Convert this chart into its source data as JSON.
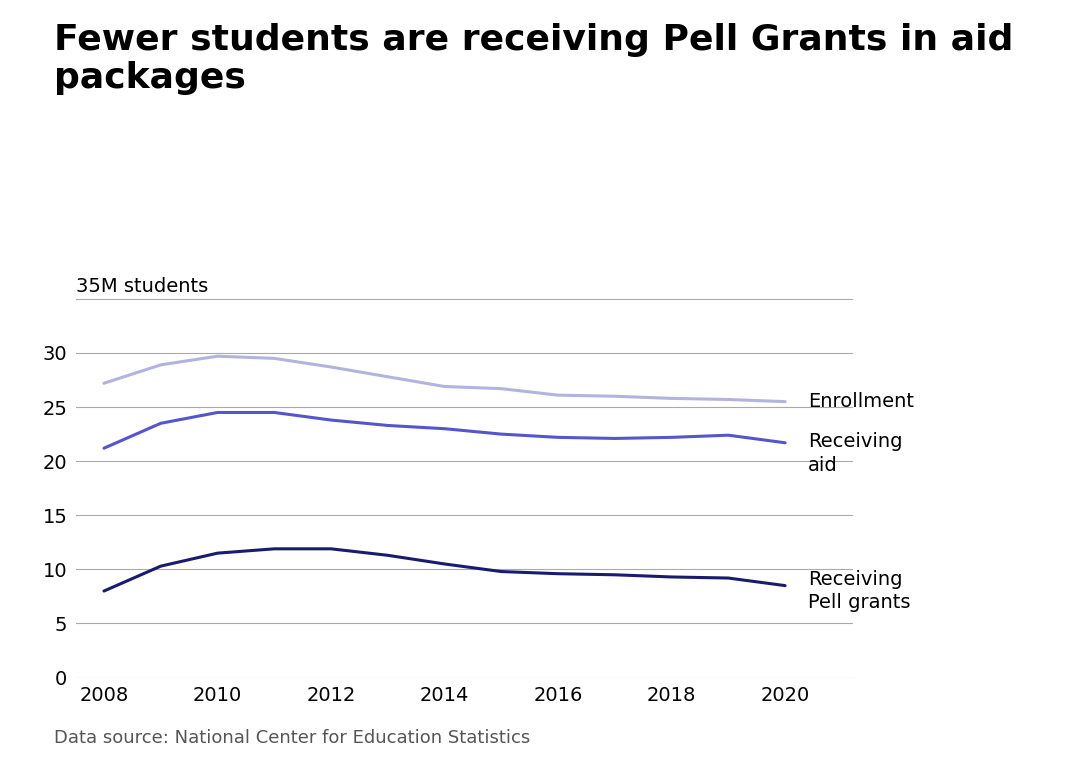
{
  "title": "Fewer students are receiving Pell Grants in aid\npackages",
  "ylabel": "35M students",
  "source": "Data source: National Center for Education Statistics",
  "years": [
    2008,
    2009,
    2010,
    2011,
    2012,
    2013,
    2014,
    2015,
    2016,
    2017,
    2018,
    2019,
    2020
  ],
  "enrollment": [
    27.2,
    28.9,
    29.7,
    29.5,
    28.7,
    27.8,
    26.9,
    26.7,
    26.1,
    26.0,
    25.8,
    25.7,
    25.5
  ],
  "receiving_aid": [
    21.2,
    23.5,
    24.5,
    24.5,
    23.8,
    23.3,
    23.0,
    22.5,
    22.2,
    22.1,
    22.2,
    22.4,
    21.7
  ],
  "receiving_pell": [
    8.0,
    10.3,
    11.5,
    11.9,
    11.9,
    11.3,
    10.5,
    9.8,
    9.6,
    9.5,
    9.3,
    9.2,
    8.5
  ],
  "enrollment_color": "#b3b3e0",
  "receiving_aid_color": "#5555cc",
  "receiving_pell_color": "#1a1a6e",
  "background_color": "#ffffff",
  "yticks": [
    0,
    5,
    10,
    15,
    20,
    25,
    30,
    35
  ],
  "xticks": [
    2008,
    2010,
    2012,
    2014,
    2016,
    2018,
    2020
  ],
  "ylim": [
    0,
    37
  ],
  "xlim": [
    2007.5,
    2021.2
  ],
  "title_fontsize": 26,
  "axis_fontsize": 14,
  "label_fontsize": 14,
  "source_fontsize": 13,
  "line_width": 2.2
}
